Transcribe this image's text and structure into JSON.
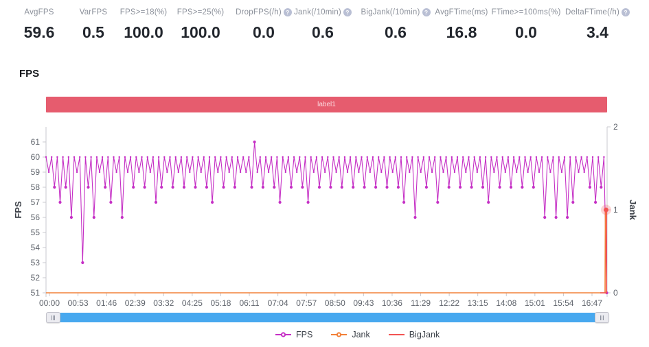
{
  "metrics": [
    {
      "label": "AvgFPS",
      "value": "59.6",
      "help": false
    },
    {
      "label": "VarFPS",
      "value": "0.5",
      "help": false
    },
    {
      "label": "FPS>=18(%)",
      "value": "100.0",
      "help": false
    },
    {
      "label": "FPS>=25(%)",
      "value": "100.0",
      "help": false
    },
    {
      "label": "DropFPS(/h)",
      "value": "0.0",
      "help": true
    },
    {
      "label": "Jank(/10min)",
      "value": "0.6",
      "help": true
    },
    {
      "label": "BigJank(/10min)",
      "value": "0.6",
      "help": true
    },
    {
      "label": "AvgFTime(ms)",
      "value": "16.8",
      "help": false
    },
    {
      "label": "FTime>=100ms(%)",
      "value": "0.0",
      "help": false
    },
    {
      "label": "DeltaFTime(/h)",
      "value": "3.4",
      "help": true
    }
  ],
  "section_title": "FPS",
  "banner": {
    "label": "label1",
    "color": "#e65c6e"
  },
  "chart_data": {
    "type": "line",
    "title": "FPS over time with Jank events",
    "x_axis": {
      "tick_labels": [
        "00:00",
        "00:53",
        "01:46",
        "02:39",
        "03:32",
        "04:25",
        "05:18",
        "06:11",
        "07:04",
        "07:57",
        "08:50",
        "09:43",
        "10:36",
        "11:29",
        "12:22",
        "13:15",
        "14:08",
        "15:01",
        "15:54",
        "16:47"
      ],
      "tick_interval_seconds": 53
    },
    "left_y_axis": {
      "title": "FPS",
      "tick_min": 51,
      "tick_max": 61,
      "tick_step": 1,
      "axis_top_value": 62
    },
    "right_y_axis": {
      "title": "Jank",
      "ticks": [
        0,
        1,
        2
      ]
    },
    "grid": false,
    "legend_position": "bottom-center",
    "series": [
      {
        "name": "FPS",
        "axis": "left",
        "color": "#c52fc5",
        "sample_interval_seconds": 5.33,
        "values": [
          60,
          59,
          60,
          58,
          60,
          57,
          60,
          58,
          60,
          56,
          60,
          59,
          60,
          53,
          60,
          58,
          60,
          56,
          60,
          59,
          60,
          58,
          60,
          57,
          60,
          59,
          60,
          56,
          60,
          59,
          60,
          58,
          60,
          59,
          60,
          58,
          60,
          59,
          60,
          57,
          60,
          58,
          60,
          59,
          60,
          58,
          60,
          59,
          60,
          58,
          60,
          59,
          60,
          58,
          60,
          59,
          60,
          58,
          60,
          57,
          60,
          59,
          60,
          58,
          60,
          59,
          60,
          58,
          60,
          59,
          60,
          59,
          60,
          58,
          61,
          59,
          60,
          58,
          60,
          59,
          60,
          58,
          60,
          57,
          60,
          59,
          60,
          58,
          60,
          59,
          60,
          58,
          60,
          57,
          60,
          59,
          60,
          58,
          60,
          59,
          60,
          58,
          60,
          59,
          60,
          58,
          60,
          59,
          60,
          58,
          60,
          59,
          60,
          58,
          60,
          59,
          60,
          58,
          60,
          59,
          60,
          58,
          60,
          59,
          60,
          58,
          60,
          57,
          60,
          59,
          60,
          56,
          60,
          59,
          60,
          58,
          60,
          59,
          60,
          57,
          60,
          59,
          60,
          58,
          60,
          59,
          60,
          58,
          60,
          59,
          60,
          58,
          60,
          59,
          60,
          58,
          60,
          57,
          60,
          59,
          60,
          58,
          60,
          59,
          60,
          58,
          60,
          59,
          60,
          58,
          60,
          59,
          60,
          58,
          60,
          59,
          60,
          56,
          60,
          59,
          60,
          56,
          60,
          59,
          60,
          56,
          60,
          57,
          60,
          59,
          60,
          59,
          60,
          58,
          60,
          57,
          60,
          58,
          60,
          51
        ]
      },
      {
        "name": "Jank",
        "axis": "right",
        "color": "#f28038",
        "baseline_value": 0,
        "final_spike_value": 1
      },
      {
        "name": "BigJank",
        "axis": "right",
        "color": "#f25352",
        "baseline_value": 0,
        "final_spike_value": 1
      }
    ],
    "highlight_point": {
      "series": "Jank",
      "value": 1,
      "position": "end-of-session"
    }
  },
  "legend": [
    {
      "label": "FPS",
      "color": "#c52fc5",
      "marker": "line-dot"
    },
    {
      "label": "Jank",
      "color": "#f28038",
      "marker": "line-dot"
    },
    {
      "label": "BigJank",
      "color": "#f25352",
      "marker": "line"
    }
  ],
  "scrollbar": {
    "fill_color": "#47a8ef"
  },
  "colors": {
    "axis_line": "#c9c9cf",
    "tick_text": "#5f646c",
    "metric_label": "#8b909a",
    "metric_value": "#23272e"
  }
}
